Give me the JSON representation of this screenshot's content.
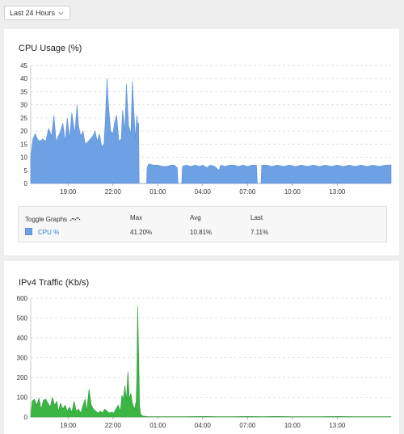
{
  "time_range": {
    "selected": "Last 24 Hours"
  },
  "cpu_panel": {
    "title": "CPU Usage (%)",
    "legend": {
      "toggle_label": "Toggle Graphs",
      "headers": {
        "max": "Max",
        "avg": "Avg",
        "last": "Last"
      },
      "series_name": "CPU %",
      "max": "41.20%",
      "avg": "10.81%",
      "last": "7.11%"
    }
  },
  "ipv4_panel": {
    "title": "IPv4 Traffic (Kb/s)"
  },
  "colors": {
    "cpu_fill": "#6ea0e4",
    "traffic_fill": "#3cb643"
  },
  "chart_data": [
    {
      "type": "area",
      "title": "CPU Usage (%)",
      "ylim": [
        0,
        45
      ],
      "yticks": [
        0,
        5,
        10,
        15,
        20,
        25,
        30,
        35,
        40,
        45
      ],
      "xlim": [
        16.5,
        40.6
      ],
      "xticks": [
        {
          "x": 19,
          "label": "19:00"
        },
        {
          "x": 22,
          "label": "22:00"
        },
        {
          "x": 25,
          "label": "01:00"
        },
        {
          "x": 28,
          "label": "04:00"
        },
        {
          "x": 31,
          "label": "07:00"
        },
        {
          "x": 34,
          "label": "10:00"
        },
        {
          "x": 37,
          "label": "13:00"
        }
      ],
      "series": [
        {
          "values_xy": [
            [
              16.5,
              10
            ],
            [
              16.65,
              17
            ],
            [
              16.8,
              19
            ],
            [
              16.95,
              17
            ],
            [
              17.1,
              16
            ],
            [
              17.3,
              17
            ],
            [
              17.5,
              16
            ],
            [
              17.7,
              21
            ],
            [
              17.9,
              18
            ],
            [
              18.05,
              26
            ],
            [
              18.2,
              16
            ],
            [
              18.35,
              18
            ],
            [
              18.5,
              20
            ],
            [
              18.65,
              23
            ],
            [
              18.8,
              16
            ],
            [
              18.95,
              25
            ],
            [
              19.1,
              17
            ],
            [
              19.25,
              27
            ],
            [
              19.45,
              19
            ],
            [
              19.6,
              30
            ],
            [
              19.7,
              22
            ],
            [
              19.85,
              18
            ],
            [
              20.0,
              20
            ],
            [
              20.15,
              15
            ],
            [
              20.35,
              16
            ],
            [
              20.5,
              17
            ],
            [
              20.65,
              18
            ],
            [
              20.8,
              20
            ],
            [
              20.95,
              16
            ],
            [
              21.1,
              19
            ],
            [
              21.25,
              14
            ],
            [
              21.4,
              15
            ],
            [
              21.5,
              25
            ],
            [
              21.6,
              40
            ],
            [
              21.7,
              30
            ],
            [
              21.85,
              20
            ],
            [
              22.0,
              19
            ],
            [
              22.1,
              23
            ],
            [
              22.25,
              26
            ],
            [
              22.4,
              16
            ],
            [
              22.55,
              17
            ],
            [
              22.65,
              28
            ],
            [
              22.8,
              20
            ],
            [
              22.9,
              38
            ],
            [
              23.05,
              22
            ],
            [
              23.2,
              19
            ],
            [
              23.3,
              39
            ],
            [
              23.4,
              28
            ],
            [
              23.5,
              17
            ],
            [
              23.6,
              26
            ],
            [
              23.65,
              23
            ],
            [
              23.72,
              23
            ],
            [
              23.75,
              0
            ],
            [
              24.25,
              0
            ],
            [
              24.28,
              6
            ],
            [
              24.4,
              7.5
            ],
            [
              24.7,
              7
            ],
            [
              25.0,
              7
            ],
            [
              25.3,
              6.5
            ],
            [
              25.6,
              6.5
            ],
            [
              25.9,
              7
            ],
            [
              26.1,
              7
            ],
            [
              26.3,
              6
            ],
            [
              26.35,
              0
            ],
            [
              26.6,
              0
            ],
            [
              26.65,
              6.5
            ],
            [
              26.9,
              7
            ],
            [
              27.2,
              6.5
            ],
            [
              27.5,
              7
            ],
            [
              27.8,
              6.5
            ],
            [
              28.0,
              7
            ],
            [
              28.3,
              6
            ],
            [
              28.5,
              7
            ],
            [
              28.8,
              6.5
            ],
            [
              29.1,
              5
            ],
            [
              29.2,
              7
            ],
            [
              29.5,
              6.5
            ],
            [
              29.8,
              7
            ],
            [
              30.1,
              7
            ],
            [
              30.4,
              6.5
            ],
            [
              30.7,
              7
            ],
            [
              31.0,
              6.5
            ],
            [
              31.3,
              7
            ],
            [
              31.6,
              7
            ],
            [
              31.65,
              0
            ],
            [
              31.9,
              0
            ],
            [
              31.95,
              7
            ],
            [
              32.3,
              7
            ],
            [
              32.6,
              6.5
            ],
            [
              33.0,
              7
            ],
            [
              33.4,
              6.5
            ],
            [
              33.8,
              7
            ],
            [
              34.2,
              6.5
            ],
            [
              34.6,
              7
            ],
            [
              35.0,
              6.5
            ],
            [
              35.4,
              7
            ],
            [
              35.8,
              6.5
            ],
            [
              36.2,
              7
            ],
            [
              36.6,
              6.5
            ],
            [
              37.0,
              7
            ],
            [
              37.4,
              6.5
            ],
            [
              37.8,
              7
            ],
            [
              38.2,
              6.5
            ],
            [
              38.6,
              7
            ],
            [
              39.0,
              6.5
            ],
            [
              39.4,
              7
            ],
            [
              39.8,
              6.5
            ],
            [
              40.2,
              7
            ],
            [
              40.6,
              7.1
            ]
          ]
        }
      ]
    },
    {
      "type": "area",
      "title": "IPv4 Traffic (Kb/s)",
      "ylim": [
        0,
        600
      ],
      "yticks": [
        0,
        100,
        200,
        300,
        400,
        500,
        600
      ],
      "xlim": [
        16.5,
        40.6
      ],
      "xticks": [
        {
          "x": 19,
          "label": "19:00"
        },
        {
          "x": 22,
          "label": "22:00"
        },
        {
          "x": 25,
          "label": "01:00"
        },
        {
          "x": 28,
          "label": "04:00"
        },
        {
          "x": 31,
          "label": "07:00"
        },
        {
          "x": 34,
          "label": "10:00"
        },
        {
          "x": 37,
          "label": "13:00"
        }
      ],
      "series": [
        {
          "values_xy": [
            [
              16.5,
              0
            ],
            [
              16.6,
              80
            ],
            [
              16.75,
              90
            ],
            [
              16.9,
              60
            ],
            [
              17.05,
              95
            ],
            [
              17.2,
              40
            ],
            [
              17.35,
              85
            ],
            [
              17.5,
              90
            ],
            [
              17.65,
              70
            ],
            [
              17.8,
              50
            ],
            [
              17.95,
              100
            ],
            [
              18.1,
              60
            ],
            [
              18.25,
              80
            ],
            [
              18.35,
              30
            ],
            [
              18.5,
              70
            ],
            [
              18.65,
              40
            ],
            [
              18.8,
              60
            ],
            [
              18.95,
              30
            ],
            [
              19.1,
              50
            ],
            [
              19.25,
              25
            ],
            [
              19.4,
              80
            ],
            [
              19.55,
              30
            ],
            [
              19.7,
              40
            ],
            [
              19.85,
              20
            ],
            [
              20.0,
              60
            ],
            [
              20.15,
              90
            ],
            [
              20.25,
              30
            ],
            [
              20.4,
              140
            ],
            [
              20.55,
              60
            ],
            [
              20.7,
              40
            ],
            [
              20.85,
              30
            ],
            [
              21.0,
              20
            ],
            [
              21.15,
              30
            ],
            [
              21.3,
              20
            ],
            [
              21.45,
              40
            ],
            [
              21.6,
              30
            ],
            [
              21.75,
              20
            ],
            [
              21.9,
              25
            ],
            [
              22.05,
              20
            ],
            [
              22.2,
              40
            ],
            [
              22.35,
              60
            ],
            [
              22.5,
              30
            ],
            [
              22.6,
              110
            ],
            [
              22.7,
              90
            ],
            [
              22.8,
              160
            ],
            [
              22.9,
              80
            ],
            [
              23.0,
              230
            ],
            [
              23.1,
              90
            ],
            [
              23.2,
              120
            ],
            [
              23.3,
              70
            ],
            [
              23.45,
              40
            ],
            [
              23.55,
              80
            ],
            [
              23.6,
              200
            ],
            [
              23.65,
              560
            ],
            [
              23.72,
              320
            ],
            [
              23.78,
              60
            ],
            [
              23.85,
              15
            ],
            [
              24.0,
              5
            ],
            [
              24.3,
              2
            ],
            [
              25,
              2
            ],
            [
              26,
              2
            ],
            [
              27,
              2
            ],
            [
              28,
              3
            ],
            [
              29,
              2
            ],
            [
              30,
              2
            ],
            [
              31,
              3
            ],
            [
              32,
              2
            ],
            [
              33,
              3
            ],
            [
              34,
              2
            ],
            [
              35,
              2
            ],
            [
              36,
              2
            ],
            [
              37,
              3
            ],
            [
              38,
              2
            ],
            [
              39,
              2
            ],
            [
              40,
              2
            ],
            [
              40.6,
              2
            ]
          ]
        }
      ]
    }
  ]
}
